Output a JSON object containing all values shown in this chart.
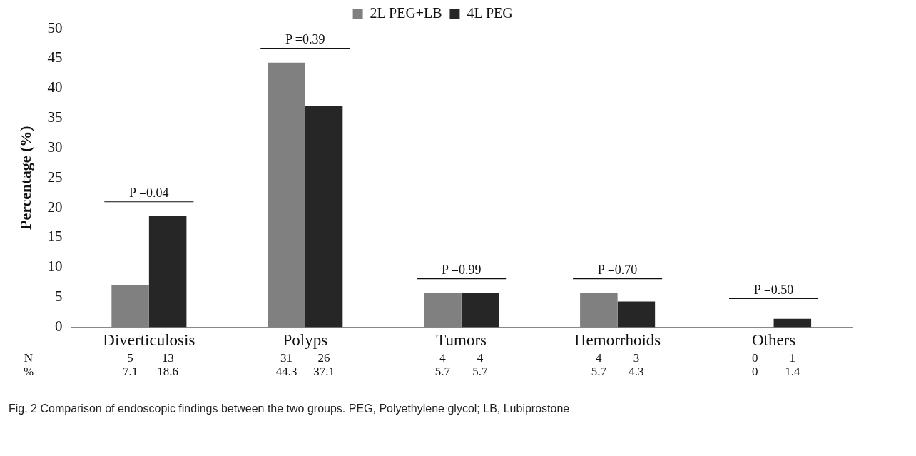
{
  "chart_data": {
    "type": "bar",
    "ylabel": "Percentage (%)",
    "categories": [
      "Diverticulosis",
      "Polyps",
      "Tumors",
      "Hemorrhoids",
      "Others"
    ],
    "series": [
      {
        "name": "2L PEG+LB",
        "color": "#808080",
        "values": [
          7.1,
          44.3,
          5.7,
          5.7,
          0
        ]
      },
      {
        "name": "4L PEG",
        "color": "#262626",
        "values": [
          18.6,
          37.1,
          5.7,
          4.3,
          1.4
        ]
      }
    ],
    "ylim": [
      0,
      50
    ],
    "yticks": [
      0,
      5,
      10,
      15,
      20,
      25,
      30,
      35,
      40,
      45,
      50
    ],
    "grid": false,
    "legend": "top",
    "data_labels": true,
    "annotations": [
      "P =0.04",
      "P =0.39",
      "P =0.99",
      "P =0.70",
      "P =0.50",
      "5",
      "13",
      "31",
      "26",
      "4",
      "4",
      "4",
      "3",
      "0",
      "1",
      "N",
      "%",
      "Fig. 2 Comparison of endoscopic findings between the two groups. PEG, Polyethylene glycol; LB, Lubiprostone"
    ]
  }
}
